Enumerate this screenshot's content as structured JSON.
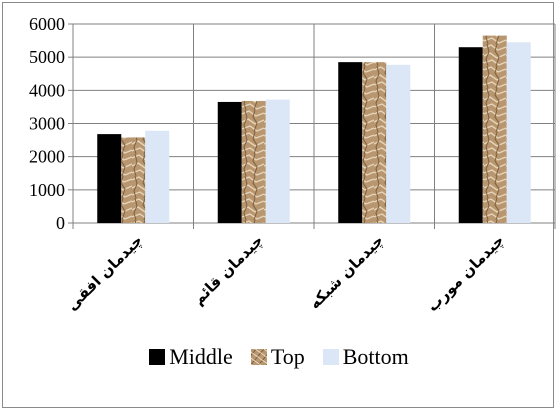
{
  "chart_data": {
    "type": "bar",
    "categories": [
      "چیدمان افقی",
      "چیدمان قائم",
      "چیدمان شبکه",
      "چیدمان مورب"
    ],
    "series": [
      {
        "name": "Middle",
        "values": [
          2680,
          3650,
          4850,
          5300
        ],
        "color": "#000000"
      },
      {
        "name": "Top",
        "values": [
          2580,
          3680,
          4850,
          5650
        ],
        "color": "#b89670"
      },
      {
        "name": "Bottom",
        "values": [
          2780,
          3720,
          4770,
          5450
        ],
        "color": "#dbe7f6"
      }
    ],
    "yticks": [
      "0",
      "1000",
      "2000",
      "3000",
      "4000",
      "5000",
      "6000"
    ],
    "ylim": [
      0,
      6000
    ],
    "grid": true,
    "legend_position": "bottom"
  }
}
